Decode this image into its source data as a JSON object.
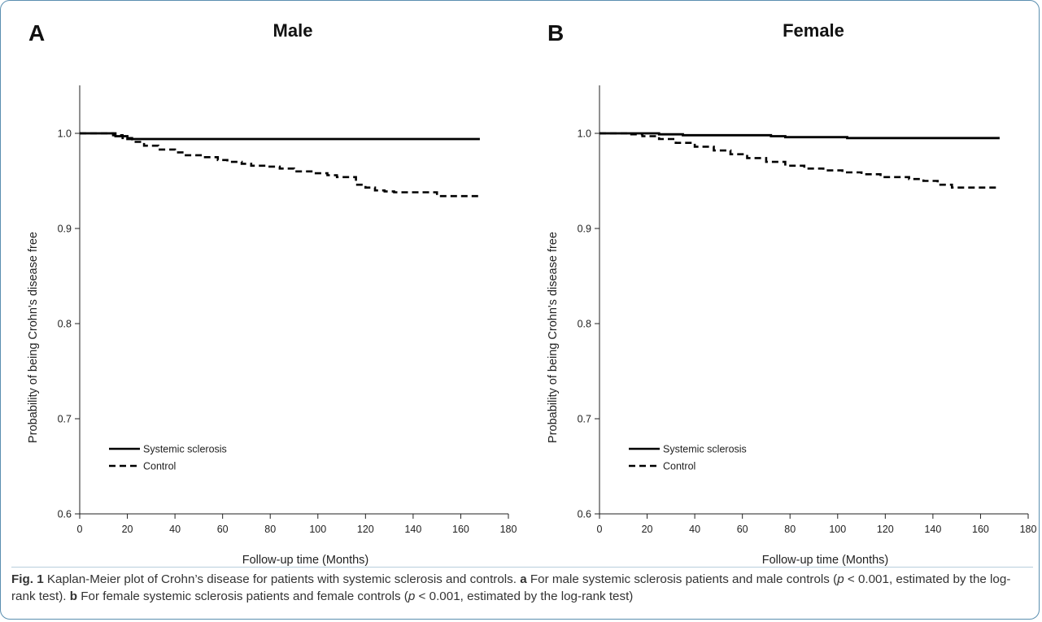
{
  "caption": {
    "fig_label": "Fig. 1",
    "intro": " Kaplan-Meier plot of Crohn’s disease for patients with systemic sclerosis and controls. ",
    "part_a_label": "a",
    "part_a_text": " For male systemic sclerosis patients and male controls (",
    "p_symbol": "p",
    "p_value_text": " < 0.001, estimated by the log-rank test). ",
    "part_b_label": "b",
    "part_b_text": " For female systemic sclerosis patients and female controls (",
    "p_value_text_b": " < 0.001, estimated by the log-rank test)"
  },
  "chart_data": [
    {
      "type": "line",
      "panel_letter": "A",
      "title": "Male",
      "xlabel": "Follow-up time (Months)",
      "ylabel": "Probability of being Crohn's disease free",
      "xlim": [
        0,
        180
      ],
      "ylim": [
        0.6,
        1.05
      ],
      "xticks": [
        "0",
        "20",
        "40",
        "60",
        "80",
        "100",
        "120",
        "140",
        "160",
        "180"
      ],
      "yticks": [
        "0.6",
        "0.7",
        "0.8",
        "0.9",
        "1.0"
      ],
      "legend": {
        "position": "lower-left",
        "entries": [
          "Systemic sclerosis",
          "Control"
        ]
      },
      "series": [
        {
          "name": "Systemic sclerosis",
          "style": "solid",
          "x": [
            0,
            15,
            20,
            168
          ],
          "y": [
            1.0,
            0.997,
            0.994,
            0.994
          ]
        },
        {
          "name": "Control",
          "style": "dashed",
          "x": [
            0,
            14,
            18,
            22,
            27,
            33,
            40,
            44,
            52,
            58,
            62,
            68,
            72,
            78,
            84,
            90,
            98,
            104,
            108,
            116,
            120,
            124,
            128,
            132,
            146,
            150,
            168
          ],
          "y": [
            1.0,
            0.998,
            0.995,
            0.991,
            0.987,
            0.983,
            0.98,
            0.977,
            0.975,
            0.972,
            0.97,
            0.968,
            0.966,
            0.965,
            0.963,
            0.96,
            0.958,
            0.956,
            0.954,
            0.946,
            0.943,
            0.94,
            0.939,
            0.938,
            0.938,
            0.934,
            0.933
          ]
        }
      ]
    },
    {
      "type": "line",
      "panel_letter": "B",
      "title": "Female",
      "xlabel": "Follow-up time (Months)",
      "ylabel": "Probability of being Crohn's disease free",
      "xlim": [
        0,
        180
      ],
      "ylim": [
        0.6,
        1.05
      ],
      "xticks": [
        "0",
        "20",
        "40",
        "60",
        "80",
        "100",
        "120",
        "140",
        "160",
        "180"
      ],
      "yticks": [
        "0.6",
        "0.7",
        "0.8",
        "0.9",
        "1.0"
      ],
      "legend": {
        "position": "lower-left",
        "entries": [
          "Systemic sclerosis",
          "Control"
        ]
      },
      "series": [
        {
          "name": "Systemic sclerosis",
          "style": "solid",
          "x": [
            0,
            14,
            25,
            35,
            60,
            72,
            78,
            100,
            104,
            168
          ],
          "y": [
            1.0,
            1.0,
            0.999,
            0.998,
            0.998,
            0.997,
            0.996,
            0.996,
            0.995,
            0.995
          ]
        },
        {
          "name": "Control",
          "style": "dashed",
          "x": [
            0,
            12,
            18,
            25,
            32,
            40,
            48,
            55,
            62,
            70,
            78,
            86,
            94,
            102,
            110,
            118,
            130,
            136,
            142,
            148,
            168
          ],
          "y": [
            1.0,
            0.999,
            0.997,
            0.994,
            0.99,
            0.986,
            0.982,
            0.978,
            0.974,
            0.97,
            0.966,
            0.963,
            0.961,
            0.959,
            0.957,
            0.954,
            0.952,
            0.95,
            0.946,
            0.943,
            0.943
          ]
        }
      ]
    }
  ]
}
